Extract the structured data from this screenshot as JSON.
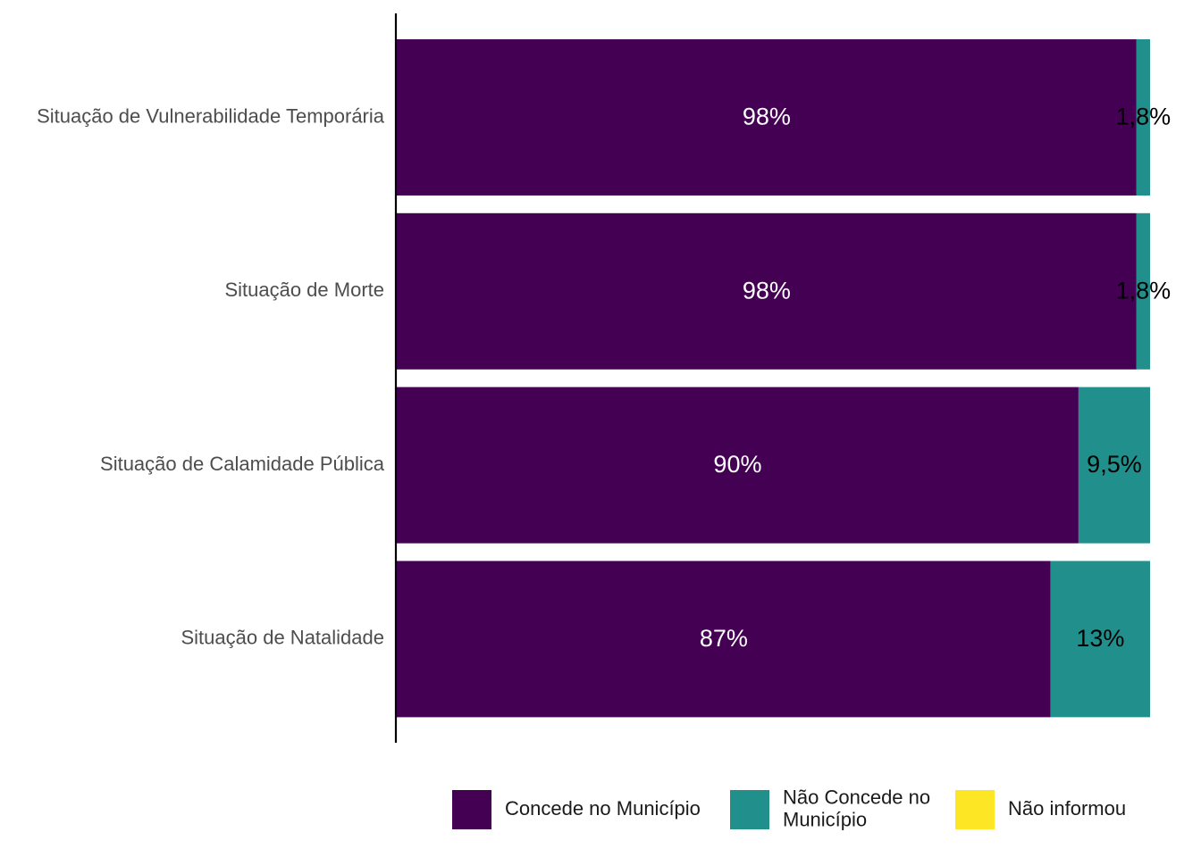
{
  "chart_data": {
    "type": "bar",
    "orientation": "horizontal",
    "stacked": true,
    "categories": [
      "Situação de Vulnerabilidade Temporária",
      "Situação de Morte",
      "Situação de Calamidade Pública",
      "Situação de Natalidade"
    ],
    "series": [
      {
        "name": "Concede no Município",
        "color": "#440154",
        "values": [
          98.2,
          98.2,
          90.5,
          86.8
        ],
        "labels": [
          "98%",
          "98%",
          "90%",
          "87%"
        ]
      },
      {
        "name": "Não Concede no Município",
        "color": "#21908C",
        "values": [
          1.8,
          1.8,
          9.5,
          13.2
        ],
        "labels": [
          "1,8%",
          "1,8%",
          "9,5%",
          "13%"
        ]
      },
      {
        "name": "Não informou",
        "color": "#FDE725",
        "values": [
          0,
          0,
          0,
          0
        ],
        "labels": [
          "",
          "",
          "",
          ""
        ]
      }
    ],
    "legend_entries": [
      {
        "lines": [
          "Concede no Município"
        ],
        "color": "#440154"
      },
      {
        "lines": [
          "Não Concede no",
          "Município"
        ],
        "color": "#21908C"
      },
      {
        "lines": [
          "Não informou"
        ],
        "color": "#FDE725"
      }
    ],
    "xlim": [
      0,
      100
    ],
    "grid": false,
    "legend_position": "bottom",
    "title": "",
    "xlabel": "",
    "ylabel": ""
  }
}
